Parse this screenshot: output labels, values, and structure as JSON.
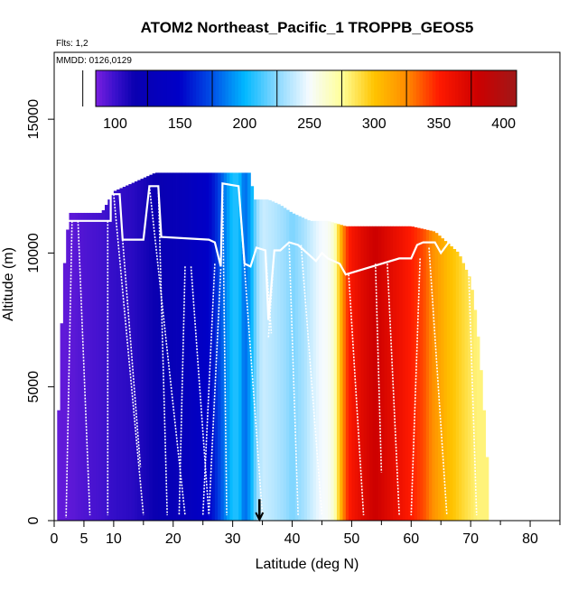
{
  "chart_data": {
    "type": "heatmap",
    "title": "ATOM2 Northeast_Pacific_1 TROPPB_GEOS5",
    "subtitle_lines": [
      "Flts: 1,2",
      "MMDD: 0126,0129"
    ],
    "xlabel": "Latitude (deg N)",
    "ylabel": "Altitude (m)",
    "xlim": [
      0,
      85
    ],
    "ylim": [
      0,
      17500
    ],
    "x_ticks": [
      0,
      5,
      10,
      20,
      30,
      40,
      50,
      60,
      70,
      80
    ],
    "y_ticks": [
      0,
      5000,
      10000,
      15000
    ],
    "grid": false,
    "colorbar": {
      "range": [
        85,
        410
      ],
      "ticks": [
        100,
        150,
        200,
        250,
        300,
        350,
        400
      ],
      "placement": "top-inside"
    },
    "colormap": [
      {
        "v": 85,
        "color": "#7a1fe0"
      },
      {
        "v": 100,
        "color": "#3a10cc"
      },
      {
        "v": 115,
        "color": "#0a00b0"
      },
      {
        "v": 150,
        "color": "#0000c8"
      },
      {
        "v": 175,
        "color": "#0050e8"
      },
      {
        "v": 200,
        "color": "#00b8ff"
      },
      {
        "v": 225,
        "color": "#8ad8ff"
      },
      {
        "v": 250,
        "color": "#f6fbff"
      },
      {
        "v": 275,
        "color": "#ffff99"
      },
      {
        "v": 300,
        "color": "#ffc400"
      },
      {
        "v": 325,
        "color": "#ff8c00"
      },
      {
        "v": 350,
        "color": "#ff1a00"
      },
      {
        "v": 380,
        "color": "#cc0000"
      },
      {
        "v": 410,
        "color": "#a01818"
      }
    ],
    "value_profile": [
      [
        0,
        90
      ],
      [
        3,
        92
      ],
      [
        5,
        95
      ],
      [
        8,
        98
      ],
      [
        10,
        102
      ],
      [
        13,
        105
      ],
      [
        15,
        110
      ],
      [
        18,
        118
      ],
      [
        20,
        125
      ],
      [
        22,
        130
      ],
      [
        24,
        140
      ],
      [
        26,
        150
      ],
      [
        27,
        160
      ],
      [
        28,
        175
      ],
      [
        29,
        190
      ],
      [
        30,
        205
      ],
      [
        31,
        205
      ],
      [
        32,
        180
      ],
      [
        33,
        195
      ],
      [
        34,
        225
      ],
      [
        35,
        240
      ],
      [
        37,
        235
      ],
      [
        39,
        228
      ],
      [
        40,
        222
      ],
      [
        42,
        232
      ],
      [
        44,
        245
      ],
      [
        45,
        250
      ],
      [
        46,
        252
      ],
      [
        47,
        262
      ],
      [
        48,
        300
      ],
      [
        49,
        340
      ],
      [
        50,
        355
      ],
      [
        52,
        370
      ],
      [
        54,
        380
      ],
      [
        56,
        370
      ],
      [
        58,
        360
      ],
      [
        60,
        350
      ],
      [
        62,
        340
      ],
      [
        64,
        320
      ],
      [
        66,
        305
      ],
      [
        68,
        295
      ],
      [
        70,
        285
      ],
      [
        71,
        280
      ]
    ],
    "column_tops": [
      [
        0.5,
        2500
      ],
      [
        1.5,
        9000
      ],
      [
        2.5,
        11500
      ],
      [
        8,
        11500
      ],
      [
        10,
        12300
      ],
      [
        17,
        13000
      ],
      [
        33,
        13000
      ],
      [
        33.5,
        12000
      ],
      [
        36,
        12000
      ],
      [
        38,
        11800
      ],
      [
        40,
        11500
      ],
      [
        43,
        11200
      ],
      [
        46,
        11200
      ],
      [
        49,
        11000
      ],
      [
        60,
        11000
      ],
      [
        64,
        10800
      ],
      [
        68,
        10000
      ],
      [
        70,
        9000
      ],
      [
        71,
        7500
      ],
      [
        72,
        5000
      ],
      [
        73,
        1500
      ]
    ],
    "flight_track": [
      [
        2,
        11200
      ],
      [
        3,
        11200
      ],
      [
        8,
        11200
      ],
      [
        9.5,
        11200
      ],
      [
        9.5,
        12200
      ],
      [
        11,
        12200
      ],
      [
        11.5,
        10500
      ],
      [
        15,
        10500
      ],
      [
        16,
        12500
      ],
      [
        17.5,
        12500
      ],
      [
        18,
        10600
      ],
      [
        26,
        10500
      ],
      [
        27,
        10400
      ],
      [
        28,
        9500
      ],
      [
        28.3,
        12600
      ],
      [
        31,
        12500
      ],
      [
        32,
        9600
      ],
      [
        33,
        9500
      ],
      [
        34,
        10200
      ],
      [
        35.5,
        10100
      ],
      [
        36,
        7500
      ],
      [
        37,
        10100
      ],
      [
        38,
        10100
      ],
      [
        39.5,
        10400
      ],
      [
        41,
        10300
      ],
      [
        44,
        9700
      ],
      [
        45,
        10000
      ],
      [
        46,
        9800
      ],
      [
        48,
        9600
      ],
      [
        49,
        9200
      ],
      [
        58,
        9800
      ],
      [
        60,
        9800
      ],
      [
        61,
        10300
      ],
      [
        62,
        10400
      ],
      [
        64,
        10400
      ],
      [
        65,
        10000
      ],
      [
        67,
        10600
      ],
      [
        69,
        10700
      ]
    ],
    "profiles": [
      [
        3,
        11200,
        2,
        100
      ],
      [
        4,
        11200,
        6,
        200
      ],
      [
        9,
        11200,
        9,
        200
      ],
      [
        10,
        12200,
        15,
        200
      ],
      [
        11.5,
        10500,
        14.5,
        2000
      ],
      [
        16,
        12500,
        22,
        200
      ],
      [
        17.5,
        12500,
        19,
        200
      ],
      [
        22,
        9500,
        21,
        200
      ],
      [
        23,
        9500,
        26,
        200
      ],
      [
        27,
        9600,
        25,
        200
      ],
      [
        28,
        9400,
        26,
        200
      ],
      [
        28.3,
        12500,
        29,
        200
      ],
      [
        31,
        12500,
        35,
        200
      ],
      [
        35.5,
        10100,
        36.5,
        7000
      ],
      [
        37,
        10100,
        36,
        6800
      ],
      [
        39.5,
        10300,
        41,
        200
      ],
      [
        41.5,
        10300,
        45,
        200
      ],
      [
        49.5,
        9200,
        52,
        200
      ],
      [
        54,
        9600,
        55,
        1800
      ],
      [
        56,
        9600,
        58,
        200
      ],
      [
        61.5,
        9800,
        60,
        200
      ],
      [
        63,
        10200,
        66,
        200
      ],
      [
        69.5,
        10500,
        71,
        200
      ]
    ],
    "marker": {
      "x": 34.5,
      "y_from": 800,
      "y_to": 0
    }
  }
}
